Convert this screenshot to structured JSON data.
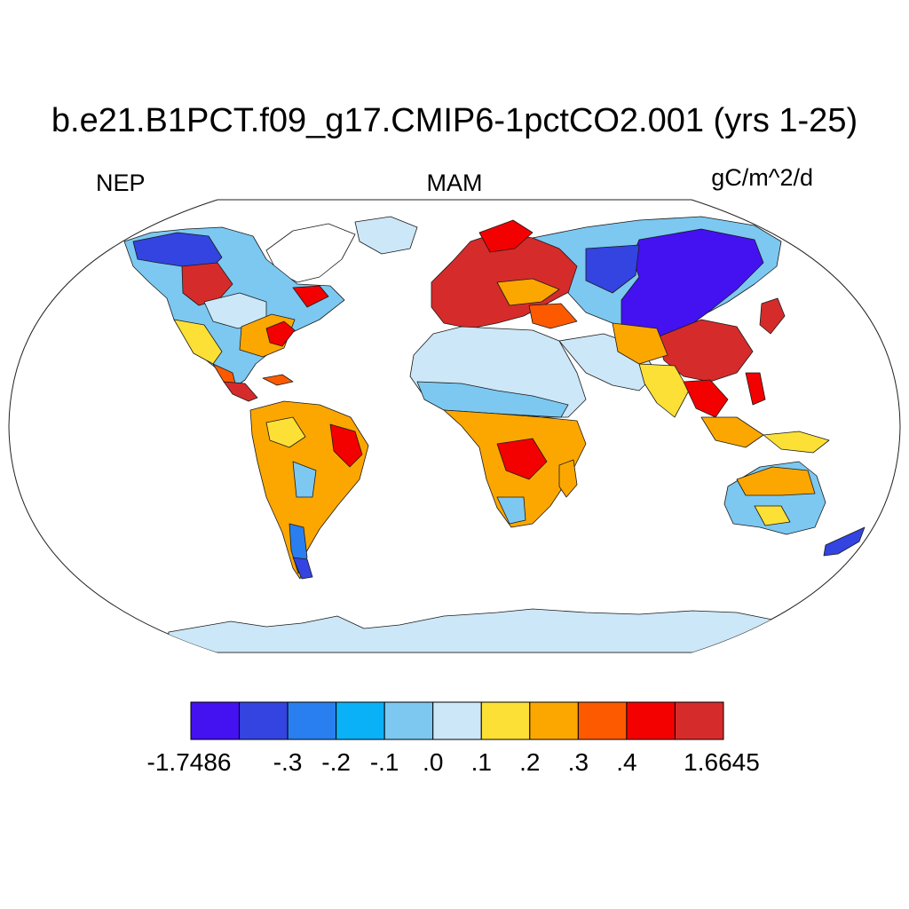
{
  "title": "b.e21.B1PCT.f09_g17.CMIP6-1pctCO2.001 (yrs 1-25)",
  "variable": "NEP",
  "season": "MAM",
  "units": "gC/m^2/d",
  "colorbar": {
    "colors": [
      "#4411f0",
      "#3344e0",
      "#2a7ff0",
      "#0bb1f7",
      "#7cc8f0",
      "#cce7f7",
      "#fde036",
      "#fca700",
      "#fd5a00",
      "#f30000",
      "#d62b2b"
    ],
    "labels": [
      "-1.7486",
      "-.3",
      "-.2",
      "-.1",
      ".0",
      ".1",
      ".2",
      ".3",
      ".4",
      "1.6645"
    ],
    "label_boundary_index": [
      0,
      2,
      3,
      4,
      5,
      6,
      7,
      8,
      9,
      11
    ]
  }
}
